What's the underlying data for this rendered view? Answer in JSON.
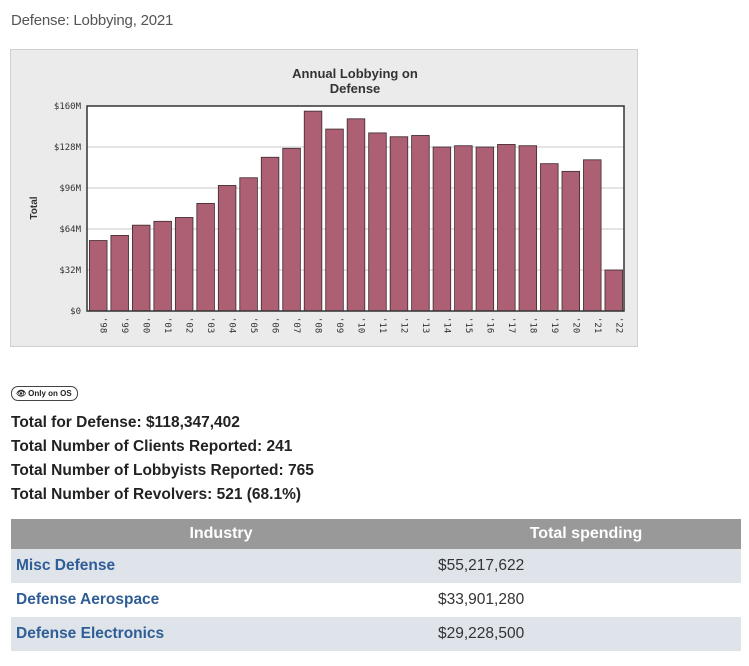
{
  "page": {
    "heading": "Defense: Lobbying, 2021"
  },
  "badge": {
    "icon": "eye-icon",
    "label": "Only on OS"
  },
  "totals": [
    {
      "label": "Total for Defense:",
      "value": "$118,347,402"
    },
    {
      "label": "Total Number of Clients Reported:",
      "value": "241"
    },
    {
      "label": "Total Number of Lobbyists Reported:",
      "value": "765"
    },
    {
      "label": "Total Number of Revolvers:",
      "value": "521 (68.1%)"
    }
  ],
  "table": {
    "headers": [
      "Industry",
      "Total spending"
    ],
    "rows": [
      {
        "industry": "Misc Defense",
        "spending": "$55,217,622"
      },
      {
        "industry": "Defense Aerospace",
        "spending": "$33,901,280"
      },
      {
        "industry": "Defense Electronics",
        "spending": "$29,228,500"
      }
    ]
  },
  "colors": {
    "bar": "#ad5f73",
    "plot_bg": "#ffffff",
    "frame_bg": "#ebebeb",
    "header_bg": "#999999",
    "row_alt": "#dfe3ea",
    "link": "#2f5d96"
  },
  "chart_data": {
    "type": "bar",
    "title": "Annual Lobbying on Defense",
    "title_lines": [
      "Annual Lobbying on",
      "Defense"
    ],
    "xlabel": "",
    "ylabel": "Total",
    "ylim": [
      0,
      160
    ],
    "yticks": [
      0,
      32,
      64,
      96,
      128,
      160
    ],
    "ytick_labels": [
      "$0",
      "$32M",
      "$64M",
      "$96M",
      "$128M",
      "$160M"
    ],
    "grid": true,
    "legend": "none",
    "categories": [
      "'98",
      "'99",
      "'00",
      "'01",
      "'02",
      "'03",
      "'04",
      "'05",
      "'06",
      "'07",
      "'08",
      "'09",
      "'10",
      "'11",
      "'12",
      "'13",
      "'14",
      "'15",
      "'16",
      "'17",
      "'18",
      "'19",
      "'20",
      "'21",
      "'22"
    ],
    "values": [
      55,
      59,
      67,
      70,
      73,
      84,
      98,
      104,
      120,
      127,
      156,
      142,
      150,
      139,
      136,
      137,
      128,
      129,
      128,
      130,
      129,
      115,
      109,
      118,
      32
    ]
  }
}
